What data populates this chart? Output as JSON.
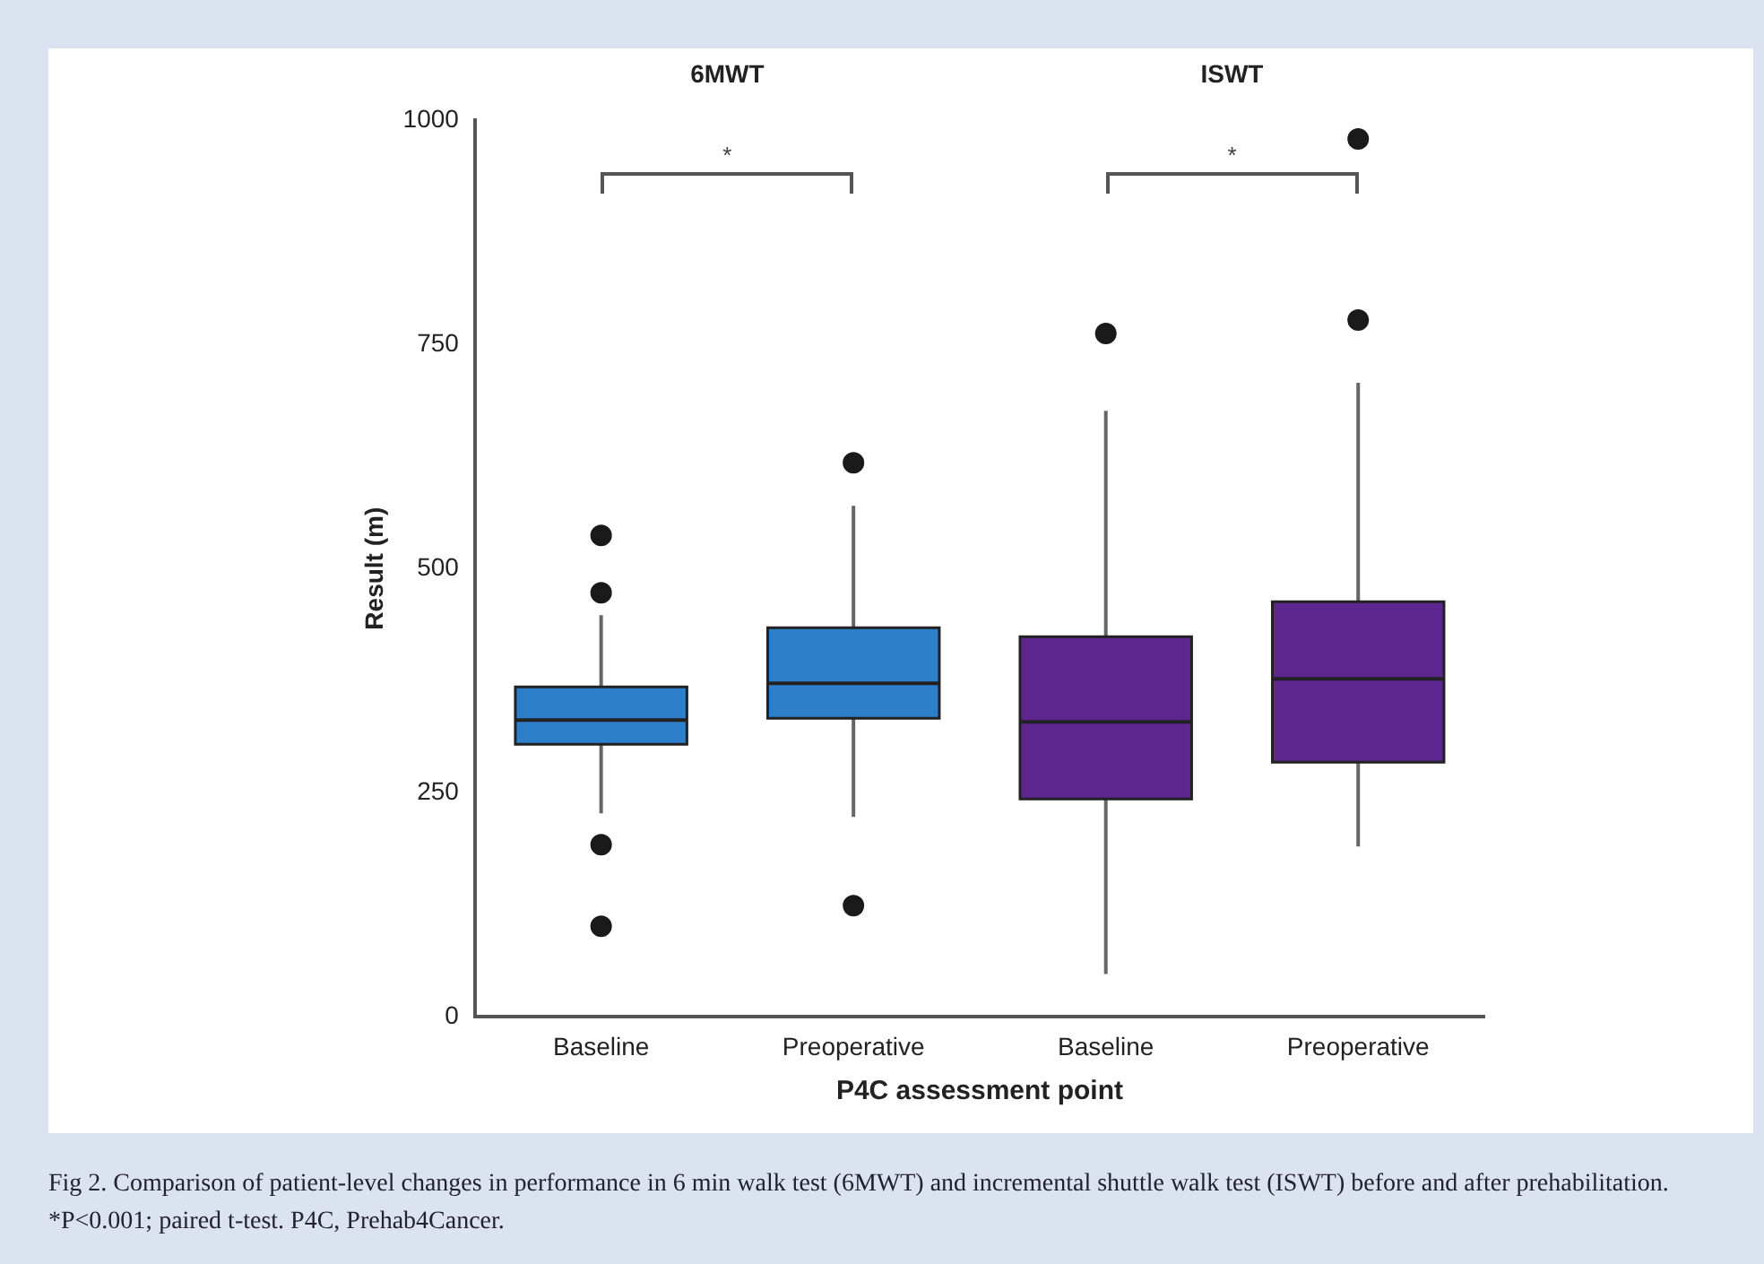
{
  "chart_data": {
    "type": "box",
    "categories": [
      "Baseline",
      "Preoperative",
      "Baseline",
      "Preoperative"
    ],
    "xlabel": "P4C assessment point",
    "ylabel": "Result (m)",
    "ylim": [
      0,
      1000
    ],
    "yticks": [
      0,
      250,
      500,
      750,
      1000
    ],
    "series": [
      {
        "color": "#2e7fc9",
        "boxes": [
          {
            "low": 227,
            "q1": 304,
            "median": 331,
            "q3": 368,
            "high": 448,
            "outliers": [
              537,
              473,
              192,
              101
            ]
          },
          {
            "low": 223,
            "q1": 333,
            "median": 372,
            "q3": 434,
            "high": 570,
            "outliers": [
              618,
              124
            ]
          },
          null,
          null
        ]
      },
      {
        "color": "#5e2790",
        "boxes": [
          null,
          null,
          {
            "low": 48,
            "q1": 243,
            "median": 329,
            "q3": 424,
            "high": 676,
            "outliers": [
              762
            ]
          },
          {
            "low": 190,
            "q1": 284,
            "median": 377,
            "q3": 463,
            "high": 707,
            "outliers": [
              777,
              979
            ]
          }
        ]
      }
    ],
    "annotations": [
      "6MWT",
      "ISWT",
      "*",
      "*",
      "Fig 2. Comparison of patient-level changes in performance in 6 min walk test (6MWT) and incremental shuttle walk test (ISWT) before and after prehabilitation. *P<0.001; paired t-test. P4C, Prehab4Cancer."
    ],
    "grid": false,
    "legend": false
  }
}
